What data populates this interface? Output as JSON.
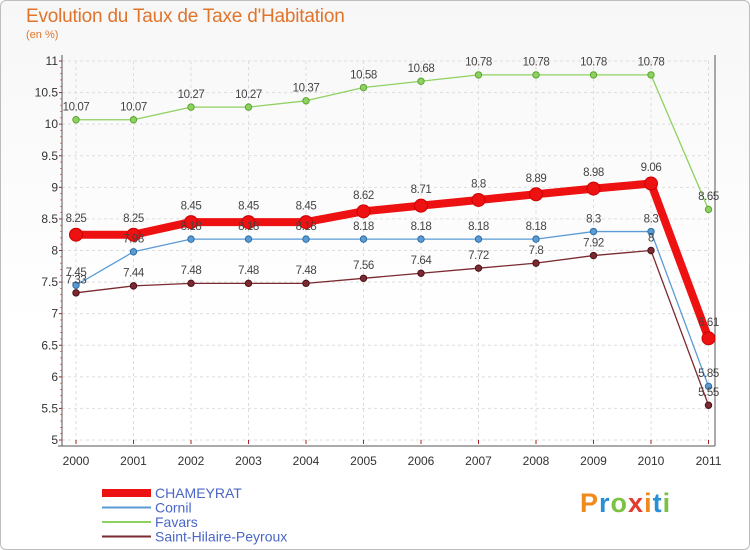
{
  "title": "Evolution du Taux de Taxe d'Habitation",
  "subtitle": "(en %)",
  "logo": {
    "text": "Proxiti",
    "colors": [
      "#f08a1c",
      "#2a8fd6",
      "#7cc242",
      "#e53a2e",
      "#f08a1c",
      "#2a8fd6",
      "#7cc242"
    ]
  },
  "chart_data": {
    "type": "line",
    "x": [
      "2000",
      "2001",
      "2002",
      "2003",
      "2004",
      "2005",
      "2006",
      "2007",
      "2008",
      "2009",
      "2010",
      "2011"
    ],
    "ylim": [
      5,
      11
    ],
    "yticks": [
      "5",
      "5.5",
      "6",
      "6.5",
      "7",
      "7.5",
      "8",
      "8.5",
      "9",
      "9.5",
      "10",
      "10.5",
      "11"
    ],
    "grid": true,
    "legend_position": "bottom-left",
    "series": [
      {
        "name": "Favars",
        "color": "#8fd160",
        "values": [
          10.07,
          10.07,
          10.27,
          10.27,
          10.37,
          10.58,
          10.68,
          10.78,
          10.78,
          10.78,
          10.78,
          8.65
        ],
        "labels": [
          "10.07",
          "10.07",
          "10.27",
          "10.27",
          "10.37",
          "10.58",
          "10.68",
          "10.78",
          "10.78",
          "10.78",
          "10.78",
          "8.65"
        ]
      },
      {
        "name": "Cornil",
        "color": "#5b9bd5",
        "values": [
          7.45,
          7.98,
          8.18,
          8.18,
          8.18,
          8.18,
          8.18,
          8.18,
          8.18,
          8.3,
          8.3,
          5.85
        ],
        "labels": [
          "7.45",
          "7.98",
          "8.18",
          "8.18",
          "8.18",
          "8.18",
          "8.18",
          "8.18",
          "8.18",
          "8.3",
          "8.3",
          "5.85"
        ]
      },
      {
        "name": "Saint-Hilaire-Peyroux",
        "color": "#7a2a30",
        "values": [
          7.33,
          7.44,
          7.48,
          7.48,
          7.48,
          7.56,
          7.64,
          7.72,
          7.8,
          7.92,
          8,
          5.55
        ],
        "labels": [
          "7.33",
          "7.44",
          "7.48",
          "7.48",
          "7.48",
          "7.56",
          "7.64",
          "7.72",
          "7.8",
          "7.92",
          "8",
          "5.55"
        ]
      },
      {
        "name": "CHAMEYRAT",
        "color": "#ee1111",
        "values": [
          8.25,
          8.25,
          8.45,
          8.45,
          8.45,
          8.62,
          8.71,
          8.8,
          8.89,
          8.98,
          9.06,
          6.61
        ],
        "labels": [
          "8.25",
          "8.25",
          "8.45",
          "8.45",
          "8.45",
          "8.62",
          "8.71",
          "8.8",
          "8.89",
          "8.98",
          "9.06",
          "6.61"
        ]
      }
    ],
    "legend": [
      "CHAMEYRAT",
      "Cornil",
      "Favars",
      "Saint-Hilaire-Peyroux"
    ]
  }
}
